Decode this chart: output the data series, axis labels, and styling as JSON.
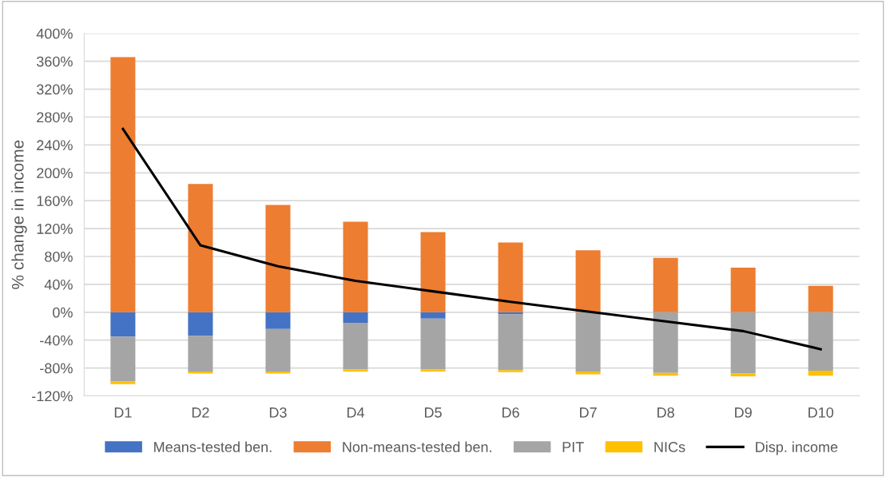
{
  "chart_data": {
    "type": "bar",
    "stacked": true,
    "ylabel": "% change in income",
    "categories": [
      "D1",
      "D2",
      "D3",
      "D4",
      "D5",
      "D6",
      "D7",
      "D8",
      "D9",
      "D10"
    ],
    "series": [
      {
        "name": "Means-tested ben.",
        "color": "#4472c4",
        "values": [
          -35,
          -34,
          -24,
          -15,
          -9,
          -3,
          0,
          0,
          0,
          0
        ]
      },
      {
        "name": "Non-means-tested ben.",
        "color": "#ed7d31",
        "values": [
          366,
          184,
          154,
          130,
          115,
          100,
          89,
          78,
          64,
          38
        ]
      },
      {
        "name": "PIT",
        "color": "#a5a5a5",
        "values": [
          -64,
          -51,
          -61,
          -67,
          -73,
          -80,
          -85,
          -87,
          -88,
          -84
        ]
      },
      {
        "name": "NICs",
        "color": "#ffc000",
        "values": [
          -4,
          -3,
          -3,
          -3,
          -3,
          -3,
          -4,
          -4,
          -4,
          -7
        ]
      },
      {
        "name": "Disp. income",
        "type": "line",
        "color": "#000000",
        "values": [
          263,
          96,
          66,
          45,
          30,
          15,
          1,
          -13,
          -27,
          -53
        ]
      }
    ],
    "ylim": [
      -120,
      400
    ],
    "yticks": [
      {
        "value": -120,
        "label": "-120%"
      },
      {
        "value": -80,
        "label": "-80%"
      },
      {
        "value": -40,
        "label": "-40%"
      },
      {
        "value": 0,
        "label": "0%"
      },
      {
        "value": 40,
        "label": "40%"
      },
      {
        "value": 80,
        "label": "80%"
      },
      {
        "value": 120,
        "label": "120%"
      },
      {
        "value": 160,
        "label": "160%"
      },
      {
        "value": 200,
        "label": "200%"
      },
      {
        "value": 240,
        "label": "240%"
      },
      {
        "value": 280,
        "label": "280%"
      },
      {
        "value": 320,
        "label": "320%"
      },
      {
        "value": 360,
        "label": "360%"
      },
      {
        "value": 400,
        "label": "400%"
      }
    ],
    "grid": "y",
    "legend": "bottom",
    "marker": "none",
    "line_style": "solid"
  }
}
